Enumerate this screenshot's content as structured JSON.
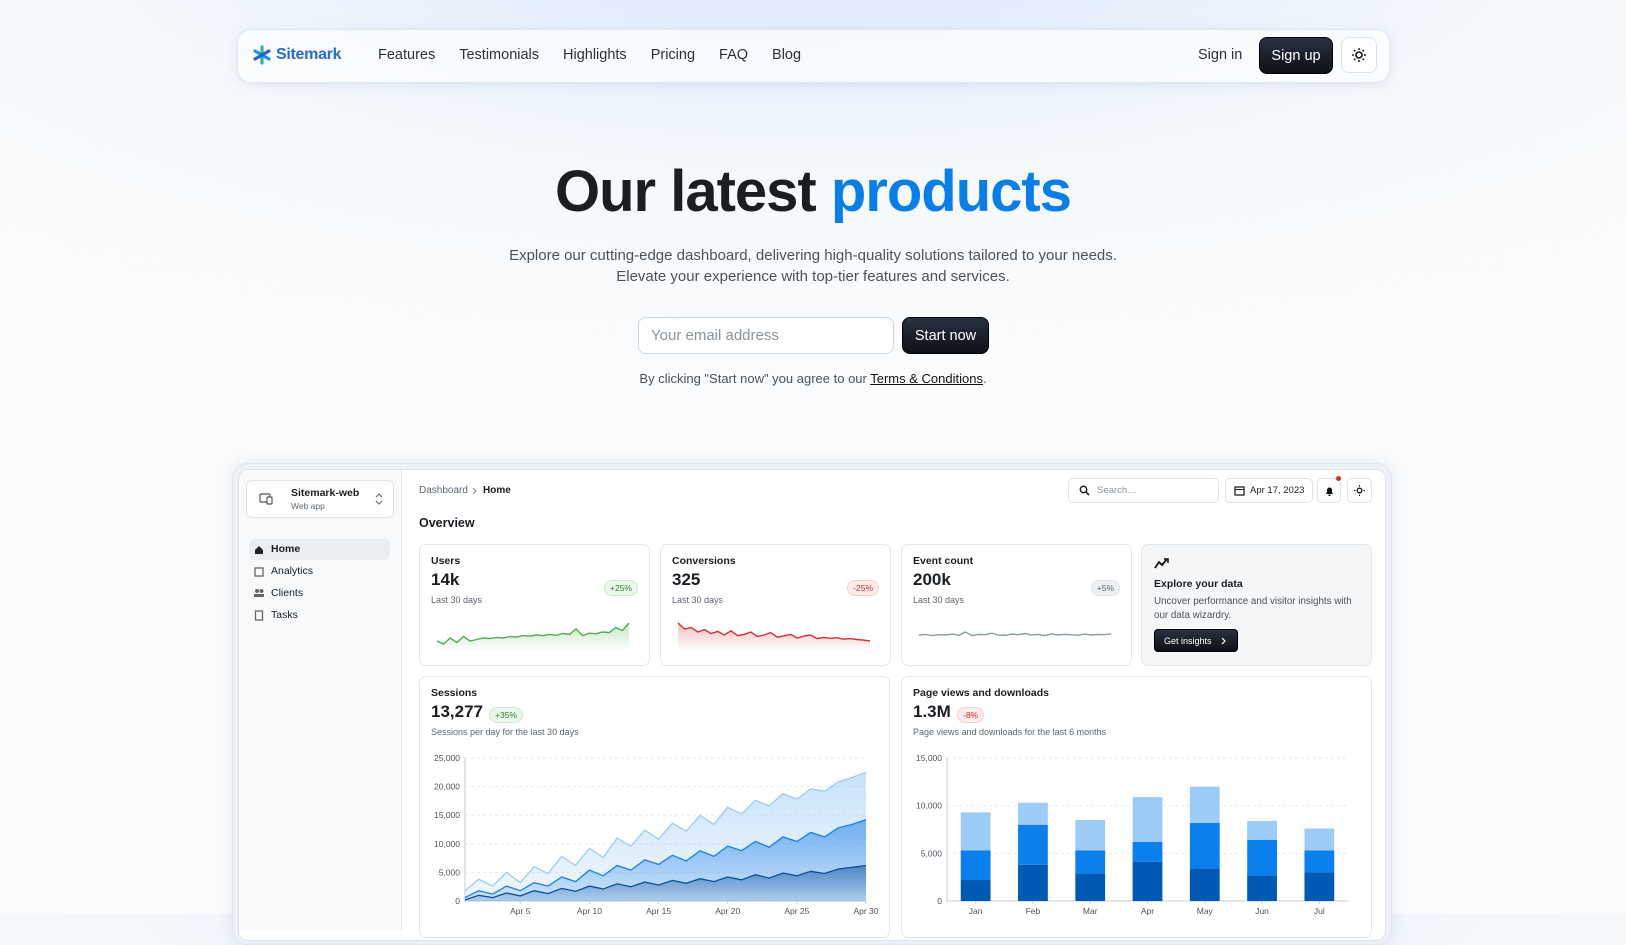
{
  "navbar": {
    "brand": "Sitemark",
    "links": [
      "Features",
      "Testimonials",
      "Highlights",
      "Pricing",
      "FAQ",
      "Blog"
    ],
    "sign_in": "Sign in",
    "sign_up": "Sign up"
  },
  "hero": {
    "title_start": "Our latest",
    "title_highlight": "products",
    "subtitle_lines": [
      "Explore our cutting-edge dashboard, delivering high-quality solutions tailored to your needs.",
      "Elevate your experience with top-tier features and services."
    ],
    "email_placeholder": "Your email address",
    "cta": "Start now",
    "terms_prefix": "By clicking \"Start now\" you agree to our",
    "terms_link": "Terms & Conditions",
    "terms_suffix": "."
  },
  "dashboard": {
    "app": {
      "name": "Sitemark-web",
      "subtitle": "Web app"
    },
    "menu": [
      "Home",
      "Analytics",
      "Clients",
      "Tasks"
    ],
    "breadcrumb": [
      "Dashboard",
      "Home"
    ],
    "search_placeholder": "Search…",
    "date": "Apr 17, 2023",
    "overview": "Overview",
    "stat_cards": [
      {
        "title": "Users",
        "value": "14k",
        "trend": "+25%",
        "period": "Last 30 days",
        "sparkline": {
          "type": "area",
          "color": "#4caf50",
          "ylim": [
            0,
            1000
          ],
          "values": [
            300,
            200,
            400,
            250,
            450,
            300,
            350,
            400,
            380,
            420,
            400,
            450,
            430,
            480,
            460,
            500,
            480,
            520,
            490,
            550,
            520,
            700,
            480,
            560,
            540,
            600,
            580,
            750,
            650,
            900
          ]
        }
      },
      {
        "title": "Conversions",
        "value": "325",
        "trend": "-25%",
        "period": "Last 30 days",
        "sparkline": {
          "type": "area",
          "color": "#d32f2f",
          "ylim": [
            0,
            1000
          ],
          "values": [
            900,
            700,
            750,
            600,
            680,
            550,
            620,
            500,
            640,
            480,
            520,
            600,
            450,
            500,
            580,
            430,
            470,
            520,
            400,
            460,
            500,
            380,
            420,
            390,
            410,
            360,
            380,
            350,
            330,
            300
          ]
        }
      },
      {
        "title": "Event count",
        "value": "200k",
        "trend": "+5%",
        "period": "Last 30 days",
        "sparkline": {
          "type": "line",
          "color": "#8d99ae",
          "ylim": [
            0,
            1000
          ],
          "values": [
            500,
            520,
            480,
            510,
            500,
            530,
            490,
            600,
            480,
            520,
            510,
            560,
            500,
            490,
            530,
            510,
            550,
            500,
            520,
            480,
            540,
            500,
            520,
            510,
            490,
            530,
            500,
            520,
            510,
            540
          ]
        }
      }
    ],
    "promo": {
      "title": "Explore your data",
      "text": "Uncover performance and visitor insights with our data wizardry.",
      "button": "Get insights"
    },
    "sessions": {
      "title": "Sessions",
      "value": "13,277",
      "trend": "+35%",
      "caption": "Sessions per day for the last 30 days",
      "chart": {
        "type": "area",
        "grid": true,
        "categories": [
          null,
          null,
          null,
          null,
          "Apr 5",
          null,
          null,
          null,
          null,
          "Apr 10",
          null,
          null,
          null,
          null,
          "Apr 15",
          null,
          null,
          null,
          null,
          "Apr 20",
          null,
          null,
          null,
          null,
          "Apr 25",
          null,
          null,
          null,
          null,
          "Apr 30"
        ],
        "ylim": [
          0,
          25000
        ],
        "yticks": [
          0,
          {
            "value": 5000,
            "label": "5,000"
          },
          {
            "value": 10000,
            "label": "10,000"
          },
          {
            "value": 15000,
            "label": "15,000"
          },
          {
            "value": 20000,
            "label": "20,000"
          },
          {
            "value": 25000,
            "label": "25,000"
          }
        ],
        "series": [
          {
            "color": "#9ccbf6",
            "values": [
              1800,
              3800,
              2600,
              5000,
              3200,
              6000,
              4800,
              7800,
              6200,
              9200,
              7600,
              11000,
              9600,
              12400,
              10800,
              13600,
              12200,
              15000,
              13400,
              16400,
              15200,
              17600,
              16600,
              18800,
              17800,
              19600,
              19200,
              20800,
              21600,
              22500
            ]
          },
          {
            "color": "#1a7fe8",
            "values": [
              600,
              1800,
              1200,
              2600,
              1800,
              3200,
              2600,
              4200,
              3400,
              5400,
              4400,
              6200,
              5400,
              7200,
              6400,
              8000,
              7000,
              8800,
              7800,
              9600,
              8800,
              10400,
              9400,
              11200,
              10400,
              12000,
              11200,
              12800,
              13400,
              14200
            ]
          },
          {
            "color": "#0a4f9e",
            "values": [
              200,
              1000,
              600,
              1400,
              900,
              1800,
              1300,
              2200,
              1700,
              2600,
              2100,
              3000,
              2500,
              3300,
              2800,
              3600,
              3100,
              3900,
              3400,
              4200,
              3700,
              4600,
              4000,
              4900,
              4400,
              5200,
              4800,
              5600,
              5900,
              6200
            ]
          }
        ]
      }
    },
    "page_views": {
      "title": "Page views and downloads",
      "value": "1.3M",
      "trend": "-8%",
      "caption": "Page views and downloads for the last 6 months",
      "chart": {
        "type": "bar",
        "stacked": true,
        "grid": true,
        "categories": [
          "Jan",
          "Feb",
          "Mar",
          "Apr",
          "May",
          "Jun",
          "Jul"
        ],
        "ylim": [
          0,
          15000
        ],
        "yticks": [
          0,
          {
            "value": 5000,
            "label": "5,000"
          },
          {
            "value": 10000,
            "label": "10,000"
          },
          {
            "value": 15000,
            "label": "15,000"
          }
        ],
        "series": [
          {
            "color": "#0059b2",
            "values": [
              2200,
              3800,
              2900,
              4100,
              3400,
              2700,
              3000
            ]
          },
          {
            "color": "#0b7fee",
            "values": [
              3100,
              4200,
              2400,
              2100,
              4800,
              3700,
              2300
            ]
          },
          {
            "color": "#9ccbf6",
            "values": [
              4000,
              2300,
              3200,
              4700,
              3800,
              2000,
              2300
            ]
          }
        ]
      }
    }
  }
}
